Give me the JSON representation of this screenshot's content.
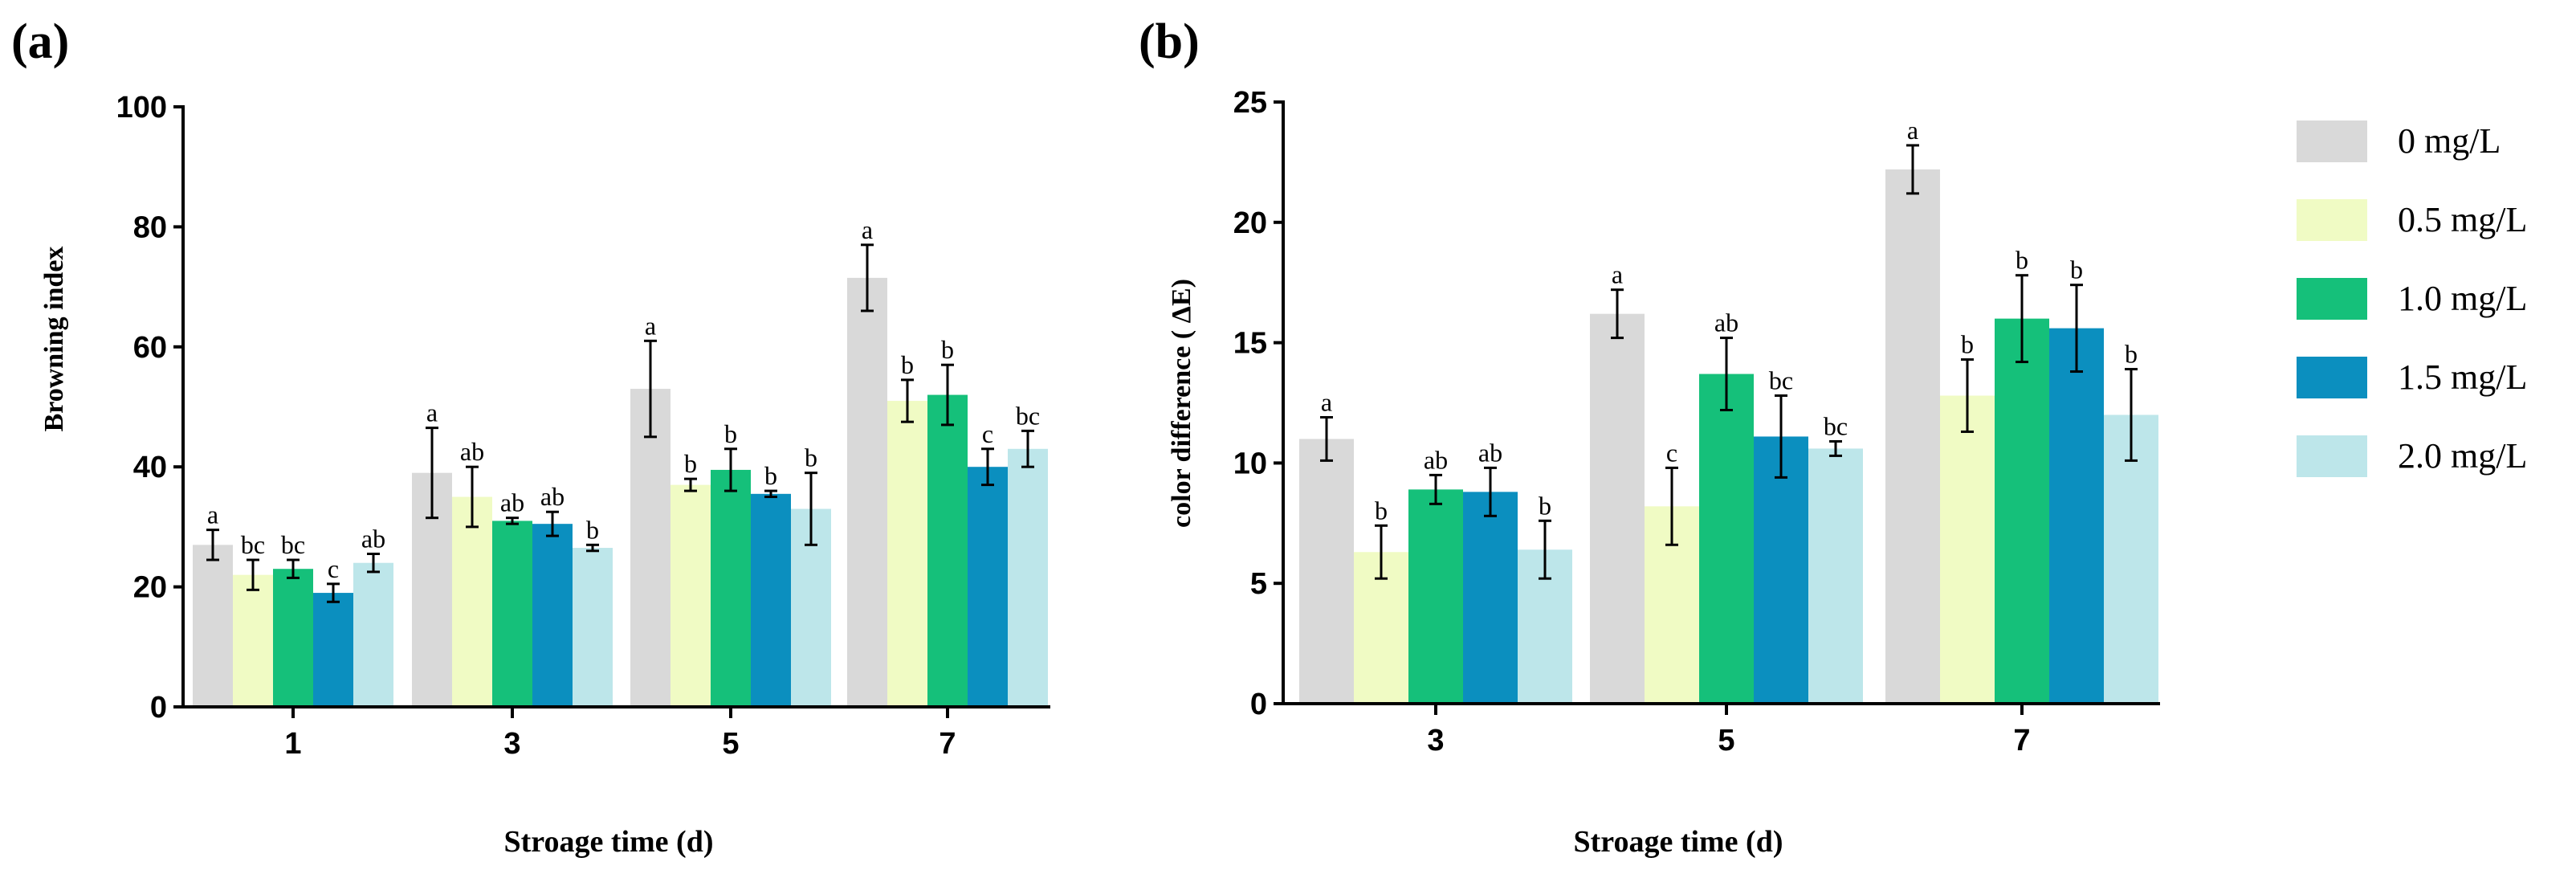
{
  "panels": [
    {
      "label": "(a)",
      "xlabel": "Stroage time (d)",
      "ylabel": "Browning index"
    },
    {
      "label": "(b)",
      "xlabel": "Stroage time (d)",
      "ylabel": "color difference ( ΔE)"
    }
  ],
  "legend": {
    "position": "right",
    "entries": [
      "0 mg/L",
      "0.5 mg/L",
      "1.0 mg/L",
      "1.5 mg/L",
      "2.0 mg/L"
    ]
  },
  "colors": {
    "series": [
      "#d9d9d9",
      "#f0fbc4",
      "#15c07a",
      "#0b8fbf",
      "#bde6ea"
    ],
    "axis": "#000000",
    "errorbar": "#000000"
  },
  "chart_data": [
    {
      "type": "bar",
      "panel": "(a)",
      "categories": [
        "1",
        "3",
        "5",
        "7"
      ],
      "xlabel": "Stroage time (d)",
      "ylabel": "Browning index",
      "ylim": [
        0,
        100
      ],
      "yticks": [
        0,
        20,
        40,
        60,
        80,
        100
      ],
      "series": [
        {
          "name": "0 mg/L",
          "values": [
            27,
            39,
            53,
            71.5
          ],
          "errors": [
            2.5,
            7.5,
            8,
            5.5
          ],
          "letters": [
            "a",
            "a",
            "a",
            "a"
          ]
        },
        {
          "name": "0.5 mg/L",
          "values": [
            22,
            35,
            37,
            51
          ],
          "errors": [
            2.5,
            5,
            1,
            3.5
          ],
          "letters": [
            "bc",
            "ab",
            "b",
            "b"
          ]
        },
        {
          "name": "1.0 mg/L",
          "values": [
            23,
            31,
            39.5,
            52
          ],
          "errors": [
            1.5,
            0.5,
            3.5,
            5
          ],
          "letters": [
            "bc",
            "ab",
            "b",
            "b"
          ]
        },
        {
          "name": "1.5 mg/L",
          "values": [
            19,
            30.5,
            35.5,
            40
          ],
          "errors": [
            1.5,
            2,
            0.5,
            3
          ],
          "letters": [
            "c",
            "ab",
            "b",
            "c"
          ]
        },
        {
          "name": "2.0 mg/L",
          "values": [
            24,
            26.5,
            33,
            43
          ],
          "errors": [
            1.5,
            0.5,
            6,
            3
          ],
          "letters": [
            "ab",
            "b",
            "b",
            "bc"
          ]
        }
      ]
    },
    {
      "type": "bar",
      "panel": "(b)",
      "categories": [
        "3",
        "5",
        "7"
      ],
      "xlabel": "Stroage time (d)",
      "ylabel": "color difference ( ΔE)",
      "ylim": [
        0,
        25
      ],
      "yticks": [
        0,
        5,
        10,
        15,
        20,
        25
      ],
      "series": [
        {
          "name": "0 mg/L",
          "values": [
            11,
            16.2,
            22.2
          ],
          "errors": [
            0.9,
            1.0,
            1.0
          ],
          "letters": [
            "a",
            "a",
            "a"
          ]
        },
        {
          "name": "0.5 mg/L",
          "values": [
            6.3,
            8.2,
            12.8
          ],
          "errors": [
            1.1,
            1.6,
            1.5
          ],
          "letters": [
            "b",
            "c",
            "b"
          ]
        },
        {
          "name": "1.0 mg/L",
          "values": [
            8.9,
            13.7,
            16.0
          ],
          "errors": [
            0.6,
            1.5,
            1.8
          ],
          "letters": [
            "ab",
            "ab",
            "b"
          ]
        },
        {
          "name": "1.5 mg/L",
          "values": [
            8.8,
            11.1,
            15.6
          ],
          "errors": [
            1.0,
            1.7,
            1.8
          ],
          "letters": [
            "ab",
            "bc",
            "b"
          ]
        },
        {
          "name": "2.0 mg/L",
          "values": [
            6.4,
            10.6,
            12.0
          ],
          "errors": [
            1.2,
            0.3,
            1.9
          ],
          "letters": [
            "b",
            "bc",
            "b"
          ]
        }
      ]
    }
  ]
}
